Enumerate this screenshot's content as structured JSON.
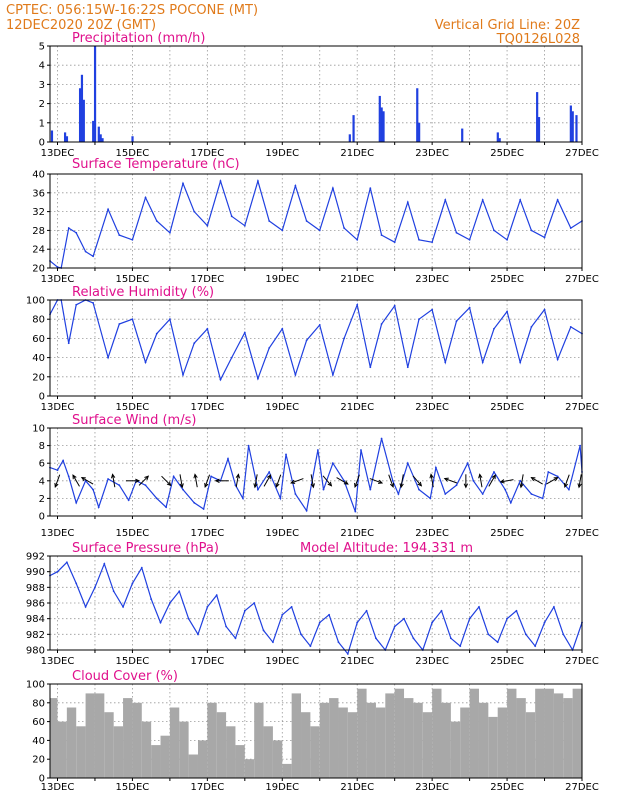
{
  "header": {
    "line1_left": "CPTEC:   056:15W-16:22S   POCONE (MT)",
    "line2_left": "12DEC2020 20Z (GMT)",
    "line1_right": "Vertical Grid Line: 20Z",
    "line2_right": "TQ0126L028"
  },
  "colors": {
    "series": "#2040e0",
    "cloud": "#a8a8a8",
    "header": "#e07a1a",
    "title": "#e0108c"
  },
  "x_tick_labels": [
    "13DEC",
    "15DEC",
    "17DEC",
    "19DEC",
    "21DEC",
    "23DEC",
    "25DEC",
    "27DEC"
  ],
  "chart_data": [
    {
      "type": "bar",
      "title": "Precipitation (mm/h)",
      "x_range_days": [
        12.8,
        27.0
      ],
      "ylim": [
        0,
        5
      ],
      "yticks": [
        "0",
        "1",
        "2",
        "3",
        "4",
        "5"
      ],
      "x": [
        12.85,
        13.2,
        13.25,
        13.6,
        13.65,
        13.7,
        13.95,
        14.0,
        14.1,
        14.15,
        14.2,
        15.0,
        20.8,
        20.9,
        21.6,
        21.65,
        21.7,
        22.6,
        22.65,
        23.8,
        24.75,
        24.8,
        25.8,
        25.85,
        26.7,
        26.75,
        26.85
      ],
      "values": [
        0.6,
        0.5,
        0.3,
        2.8,
        3.5,
        2.2,
        1.1,
        5.0,
        0.8,
        0.4,
        0.2,
        0.3,
        0.4,
        1.4,
        2.4,
        1.8,
        1.6,
        2.8,
        1.0,
        0.7,
        0.5,
        0.2,
        2.6,
        1.3,
        1.9,
        1.6,
        1.4
      ]
    },
    {
      "type": "line",
      "title": "Surface Temperature (nC)",
      "x_range_days": [
        12.8,
        27.0
      ],
      "ylim": [
        20,
        40
      ],
      "yticks": [
        "20",
        "24",
        "28",
        "32",
        "36",
        "40"
      ],
      "x": [
        12.8,
        13.0,
        13.1,
        13.3,
        13.5,
        13.75,
        13.95,
        14.35,
        14.65,
        15.0,
        15.35,
        15.65,
        16.0,
        16.35,
        16.65,
        17.0,
        17.35,
        17.65,
        18.0,
        18.35,
        18.65,
        19.0,
        19.35,
        19.65,
        20.0,
        20.35,
        20.65,
        21.0,
        21.35,
        21.65,
        22.0,
        22.35,
        22.65,
        23.0,
        23.35,
        23.65,
        24.0,
        24.35,
        24.65,
        25.0,
        25.35,
        25.65,
        26.0,
        26.35,
        26.7,
        27.0
      ],
      "values": [
        21.5,
        20.2,
        20.0,
        28.5,
        27.5,
        23.5,
        22.5,
        32.5,
        27.0,
        26.0,
        35.0,
        30.0,
        27.5,
        38.0,
        32.0,
        29.0,
        38.5,
        31.0,
        29.0,
        38.5,
        30.0,
        28.0,
        37.5,
        30.0,
        28.0,
        37.0,
        28.5,
        26.0,
        37.0,
        27.0,
        25.5,
        34.0,
        26.0,
        25.5,
        34.5,
        27.5,
        26.0,
        34.5,
        28.0,
        26.0,
        34.5,
        28.0,
        26.5,
        34.5,
        28.5,
        30.0
      ]
    },
    {
      "type": "line",
      "title": "Relative Humidity (%)",
      "x_range_days": [
        12.8,
        27.0
      ],
      "ylim": [
        0,
        100
      ],
      "yticks": [
        "0",
        "20",
        "40",
        "60",
        "80",
        "100"
      ],
      "x": [
        12.8,
        13.0,
        13.1,
        13.3,
        13.5,
        13.75,
        13.95,
        14.35,
        14.65,
        15.0,
        15.35,
        15.65,
        16.0,
        16.35,
        16.65,
        17.0,
        17.35,
        17.65,
        18.0,
        18.35,
        18.65,
        19.0,
        19.35,
        19.65,
        20.0,
        20.35,
        20.65,
        21.0,
        21.35,
        21.65,
        22.0,
        22.35,
        22.65,
        23.0,
        23.35,
        23.65,
        24.0,
        24.35,
        24.65,
        25.0,
        25.35,
        25.65,
        26.0,
        26.35,
        26.7,
        27.0
      ],
      "values": [
        85,
        100,
        100,
        55,
        95,
        100,
        97,
        40,
        75,
        80,
        35,
        65,
        80,
        22,
        55,
        70,
        17,
        40,
        66,
        18,
        50,
        70,
        22,
        58,
        74,
        22,
        60,
        95,
        30,
        75,
        94,
        30,
        80,
        90,
        35,
        78,
        92,
        35,
        70,
        88,
        35,
        72,
        90,
        38,
        72,
        65
      ]
    },
    {
      "type": "line",
      "title": "Surface Wind (m/s)",
      "x_range_days": [
        12.8,
        27.0
      ],
      "ylim": [
        0,
        10
      ],
      "yticks": [
        "0",
        "2",
        "4",
        "6",
        "8",
        "10"
      ],
      "x": [
        12.8,
        13.0,
        13.15,
        13.3,
        13.5,
        13.75,
        13.95,
        14.1,
        14.35,
        14.65,
        14.9,
        15.1,
        15.35,
        15.65,
        15.9,
        16.1,
        16.35,
        16.65,
        16.9,
        17.1,
        17.35,
        17.55,
        17.75,
        17.95,
        18.1,
        18.35,
        18.65,
        18.95,
        19.1,
        19.35,
        19.65,
        19.95,
        20.1,
        20.35,
        20.65,
        20.95,
        21.1,
        21.35,
        21.65,
        21.95,
        22.1,
        22.35,
        22.65,
        22.95,
        23.1,
        23.35,
        23.65,
        23.95,
        24.1,
        24.35,
        24.65,
        24.95,
        25.1,
        25.35,
        25.65,
        25.95,
        26.1,
        26.35,
        26.65,
        26.95,
        27.0
      ],
      "values": [
        5.5,
        5.2,
        6.3,
        4.5,
        1.5,
        4.0,
        3.0,
        1.0,
        4.2,
        3.5,
        1.8,
        4.0,
        3.5,
        2.0,
        1.0,
        4.5,
        3.0,
        1.5,
        0.8,
        4.5,
        4.0,
        6.5,
        3.5,
        2.0,
        8.0,
        3.0,
        5.0,
        2.0,
        7.0,
        2.5,
        0.6,
        7.5,
        3.0,
        6.0,
        4.0,
        0.5,
        7.5,
        3.0,
        8.8,
        4.0,
        2.5,
        6.0,
        3.0,
        2.0,
        5.5,
        2.5,
        3.5,
        6.0,
        4.0,
        2.5,
        5.0,
        3.0,
        1.5,
        4.0,
        2.5,
        2.0,
        5.0,
        4.5,
        3.0,
        8.0,
        5.0
      ],
      "arrow_x": [
        13.0,
        13.5,
        13.8,
        14.5,
        15.0,
        15.3,
        15.9,
        16.3,
        16.7,
        17.0,
        17.4,
        17.8,
        18.3,
        18.6,
        18.9,
        19.4,
        19.8,
        20.2,
        20.6,
        21.0,
        21.5,
        21.9,
        22.2,
        22.6,
        23.0,
        23.5,
        23.9,
        24.3,
        24.6,
        25.0,
        25.4,
        25.8,
        26.2,
        26.6,
        26.95
      ],
      "arrow_dir_deg": [
        200,
        330,
        300,
        350,
        90,
        45,
        135,
        170,
        350,
        200,
        270,
        10,
        190,
        30,
        200,
        250,
        170,
        140,
        120,
        200,
        110,
        160,
        190,
        140,
        350,
        290,
        180,
        350,
        30,
        260,
        190,
        300,
        60,
        200,
        190
      ]
    },
    {
      "type": "line",
      "title": "Surface Pressure (hPa)",
      "annotation": "Model Altitude: 194.331 m",
      "x_range_days": [
        12.8,
        27.0
      ],
      "ylim": [
        980,
        992
      ],
      "yticks": [
        "980",
        "982",
        "984",
        "986",
        "988",
        "990",
        "992"
      ],
      "x": [
        12.8,
        13.0,
        13.25,
        13.5,
        13.75,
        14.0,
        14.25,
        14.5,
        14.75,
        15.0,
        15.25,
        15.5,
        15.75,
        16.0,
        16.25,
        16.5,
        16.75,
        17.0,
        17.25,
        17.5,
        17.75,
        18.0,
        18.25,
        18.5,
        18.75,
        19.0,
        19.25,
        19.5,
        19.75,
        20.0,
        20.25,
        20.5,
        20.75,
        21.0,
        21.25,
        21.5,
        21.75,
        22.0,
        22.25,
        22.5,
        22.75,
        23.0,
        23.25,
        23.5,
        23.75,
        24.0,
        24.25,
        24.5,
        24.75,
        25.0,
        25.25,
        25.5,
        25.75,
        26.0,
        26.25,
        26.5,
        26.75,
        27.0
      ],
      "values": [
        989.5,
        990.0,
        991.2,
        988.5,
        985.5,
        988.0,
        991.0,
        987.5,
        985.5,
        988.5,
        990.5,
        986.5,
        983.5,
        986.0,
        987.5,
        984.0,
        982.0,
        985.5,
        987.0,
        983.0,
        981.5,
        985.0,
        986.0,
        982.5,
        981.0,
        984.5,
        985.5,
        982.0,
        980.5,
        983.5,
        984.5,
        981.0,
        979.5,
        983.5,
        985.0,
        981.5,
        980.0,
        983.0,
        984.0,
        981.5,
        980.0,
        983.5,
        985.0,
        981.5,
        980.5,
        984.0,
        985.5,
        982.0,
        981.0,
        984.0,
        985.0,
        982.0,
        980.5,
        983.5,
        985.5,
        982.0,
        980.0,
        983.5
      ]
    },
    {
      "type": "bar",
      "title": "Cloud Cover (%)",
      "x_range_days": [
        12.8,
        27.0
      ],
      "ylim": [
        0,
        100
      ],
      "yticks": [
        "0",
        "20",
        "40",
        "60",
        "80",
        "100"
      ],
      "x": [
        12.8,
        13.0,
        13.25,
        13.5,
        13.75,
        14.0,
        14.25,
        14.5,
        14.75,
        15.0,
        15.25,
        15.5,
        15.75,
        16.0,
        16.25,
        16.5,
        16.75,
        17.0,
        17.25,
        17.5,
        17.75,
        18.0,
        18.25,
        18.5,
        18.75,
        19.0,
        19.25,
        19.5,
        19.75,
        20.0,
        20.25,
        20.5,
        20.75,
        21.0,
        21.25,
        21.5,
        21.75,
        22.0,
        22.25,
        22.5,
        22.75,
        23.0,
        23.25,
        23.5,
        23.75,
        24.0,
        24.25,
        24.5,
        24.75,
        25.0,
        25.25,
        25.5,
        25.75,
        26.0,
        26.25,
        26.5,
        26.75,
        27.0
      ],
      "values": [
        85,
        60,
        75,
        55,
        90,
        90,
        70,
        55,
        85,
        80,
        60,
        35,
        45,
        75,
        60,
        25,
        40,
        80,
        70,
        55,
        35,
        20,
        80,
        55,
        40,
        15,
        90,
        70,
        55,
        80,
        85,
        75,
        70,
        95,
        80,
        75,
        90,
        95,
        85,
        80,
        70,
        95,
        80,
        60,
        75,
        95,
        80,
        65,
        75,
        95,
        85,
        70,
        95,
        95,
        90,
        85,
        95,
        90
      ]
    }
  ]
}
